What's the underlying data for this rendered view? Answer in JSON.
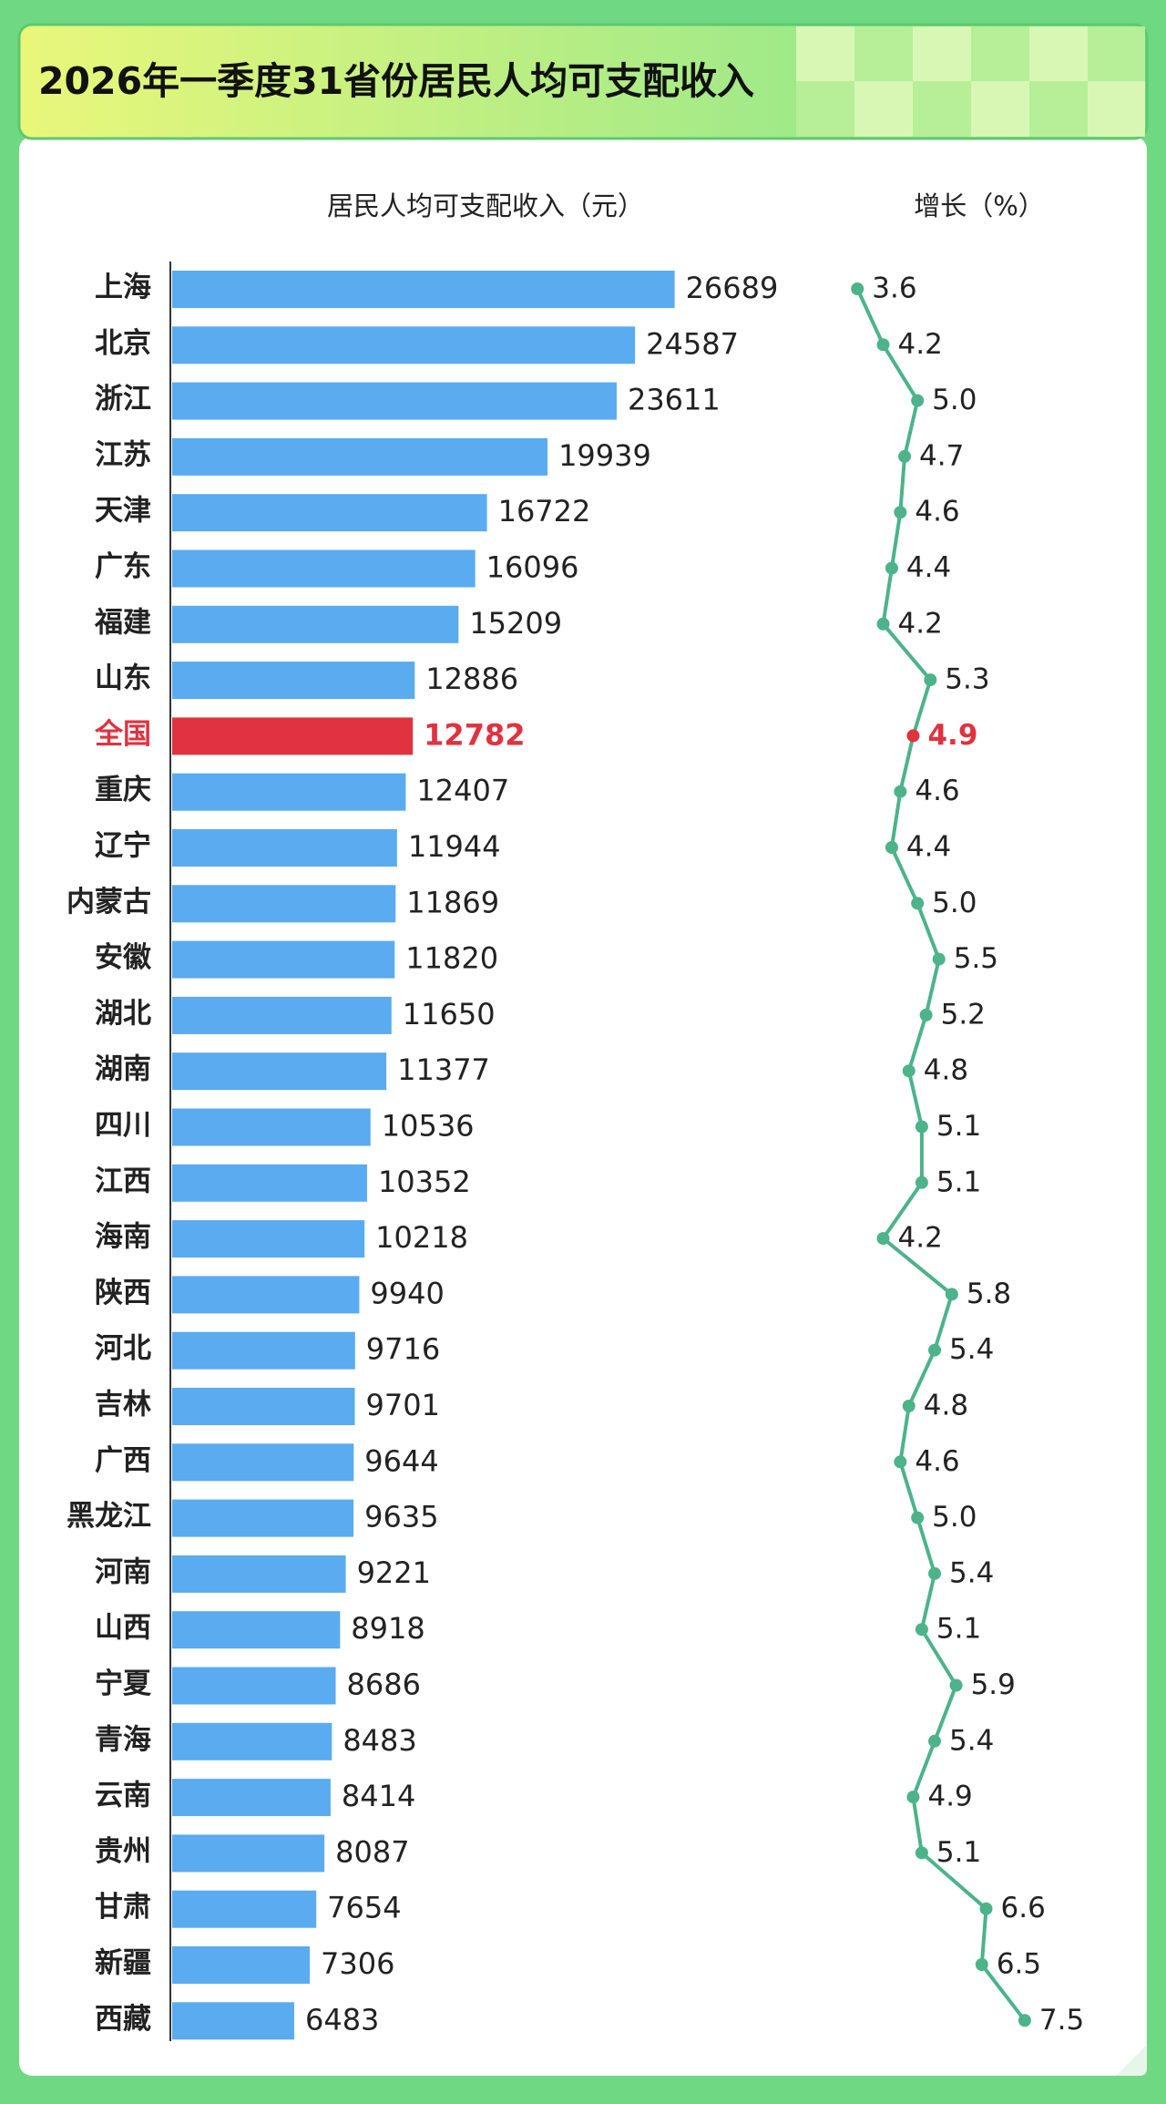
{
  "header": {
    "title": "2026年一季度31省份居民人均可支配收入"
  },
  "chart_data": [
    {
      "type": "bar",
      "orientation": "horizontal",
      "title": "居民人均可支配收入（元）",
      "categories": [
        "上海",
        "北京",
        "浙江",
        "江苏",
        "天津",
        "广东",
        "福建",
        "山东",
        "全国",
        "重庆",
        "辽宁",
        "内蒙古",
        "安徽",
        "湖北",
        "湖南",
        "四川",
        "江西",
        "海南",
        "陕西",
        "河北",
        "吉林",
        "广西",
        "黑龙江",
        "河南",
        "山西",
        "宁夏",
        "青海",
        "云南",
        "贵州",
        "甘肃",
        "新疆",
        "西藏"
      ],
      "values": [
        26689,
        24587,
        23611,
        19939,
        16722,
        16096,
        15209,
        12886,
        12782,
        12407,
        11944,
        11869,
        11820,
        11650,
        11377,
        10536,
        10352,
        10218,
        9940,
        9716,
        9701,
        9644,
        9635,
        9221,
        8918,
        8686,
        8483,
        8414,
        8087,
        7654,
        7306,
        6483
      ],
      "color": "#5aabf0",
      "colors": [
        "#5aabf0",
        "#5aabf0",
        "#5aabf0",
        "#5aabf0",
        "#5aabf0",
        "#5aabf0",
        "#5aabf0",
        "#5aabf0",
        "#e0323f",
        "#5aabf0",
        "#5aabf0",
        "#5aabf0",
        "#5aabf0",
        "#5aabf0",
        "#5aabf0",
        "#5aabf0",
        "#5aabf0",
        "#5aabf0",
        "#5aabf0",
        "#5aabf0",
        "#5aabf0",
        "#5aabf0",
        "#5aabf0",
        "#5aabf0",
        "#5aabf0",
        "#5aabf0",
        "#5aabf0",
        "#5aabf0",
        "#5aabf0",
        "#5aabf0",
        "#5aabf0",
        "#5aabf0"
      ],
      "xlim": [
        0,
        30000
      ]
    },
    {
      "type": "line",
      "orientation": "horizontal",
      "title": "增长（%）",
      "values": [
        3.6,
        4.2,
        5.0,
        4.7,
        4.6,
        4.4,
        4.2,
        5.3,
        4.9,
        4.6,
        4.4,
        5.0,
        5.5,
        5.2,
        4.8,
        5.1,
        5.1,
        4.2,
        5.8,
        5.4,
        4.8,
        4.6,
        5.0,
        5.4,
        5.1,
        5.9,
        5.4,
        4.9,
        5.1,
        6.6,
        6.5,
        7.5
      ],
      "value_labels": [
        "3.6",
        "4.2",
        "5.0",
        "4.7",
        "4.6",
        "4.4",
        "4.2",
        "5.3",
        "4.9",
        "4.6",
        "4.4",
        "5.0",
        "5.5",
        "5.2",
        "4.8",
        "5.1",
        "5.1",
        "4.2",
        "5.8",
        "5.4",
        "4.8",
        "4.6",
        "5.0",
        "5.4",
        "5.1",
        "5.9",
        "5.4",
        "4.9",
        "5.1",
        "6.6",
        "6.5",
        "7.5"
      ],
      "color": "#4cb38a",
      "colors": [
        "#4cb38a",
        "#4cb38a",
        "#4cb38a",
        "#4cb38a",
        "#4cb38a",
        "#4cb38a",
        "#4cb38a",
        "#4cb38a",
        "#e0323f",
        "#4cb38a",
        "#4cb38a",
        "#4cb38a",
        "#4cb38a",
        "#4cb38a",
        "#4cb38a",
        "#4cb38a",
        "#4cb38a",
        "#4cb38a",
        "#4cb38a",
        "#4cb38a",
        "#4cb38a",
        "#4cb38a",
        "#4cb38a",
        "#4cb38a",
        "#4cb38a",
        "#4cb38a",
        "#4cb38a",
        "#4cb38a",
        "#4cb38a",
        "#4cb38a",
        "#4cb38a",
        "#4cb38a"
      ],
      "xlim": [
        3,
        8.5
      ]
    }
  ]
}
